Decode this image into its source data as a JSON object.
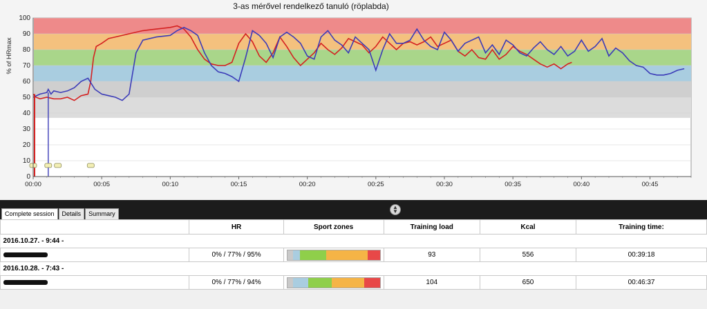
{
  "chart_data": {
    "type": "line",
    "title": "3-as mérővel rendelkező tanuló (röplabda)",
    "ylabel": "% of HRmax",
    "xlabel": "",
    "ylim": [
      0,
      100
    ],
    "y_ticks": [
      "0",
      "10",
      "20",
      "30",
      "40",
      "50",
      "60",
      "70",
      "80",
      "90",
      "100"
    ],
    "x_ticks": [
      "00:00",
      "00:05",
      "00:10",
      "00:15",
      "00:20",
      "00:25",
      "00:30",
      "00:35",
      "00:40",
      "00:45"
    ],
    "xlim_minutes": [
      0,
      48
    ],
    "grid": true,
    "zones": [
      {
        "from": 90,
        "to": 100,
        "color": "#ee8a8a"
      },
      {
        "from": 80,
        "to": 90,
        "color": "#f4c17e"
      },
      {
        "from": 70,
        "to": 80,
        "color": "#a9d68a"
      },
      {
        "from": 60,
        "to": 70,
        "color": "#a9cde0"
      },
      {
        "from": 50,
        "to": 60,
        "color": "#cfcfcf"
      },
      {
        "from": 37,
        "to": 50,
        "color": "#dcdcdc"
      }
    ],
    "series": [
      {
        "color": "#d42020",
        "x": [
          0,
          0.2,
          0.5,
          1,
          1.5,
          2,
          2.5,
          3,
          3.5,
          4,
          4.2,
          4.4,
          4.6,
          5,
          5.5,
          6,
          7,
          8,
          9,
          10,
          10.5,
          11,
          11.5,
          12,
          12.5,
          13,
          13.5,
          14,
          14.5,
          15,
          15.5,
          16,
          16.5,
          17,
          17.5,
          18,
          18.5,
          19,
          19.5,
          20,
          20.5,
          21,
          21.5,
          22,
          22.5,
          23,
          23.5,
          24,
          24.5,
          25,
          25.5,
          26,
          26.5,
          27,
          27.5,
          28,
          28.5,
          29,
          29.5,
          30,
          30.5,
          31,
          31.5,
          32,
          32.5,
          33,
          33.5,
          34,
          34.5,
          35,
          35.5,
          36,
          36.5,
          37,
          37.5,
          38,
          38.5,
          39,
          39.3
        ],
        "y": [
          52,
          50,
          49,
          50,
          49,
          49,
          50,
          48,
          51,
          52,
          60,
          75,
          82,
          84,
          87,
          88,
          90,
          92,
          93,
          94,
          95,
          93,
          88,
          80,
          74,
          71,
          70,
          70,
          72,
          84,
          90,
          85,
          76,
          72,
          78,
          88,
          82,
          75,
          70,
          74,
          78,
          84,
          80,
          77,
          81,
          87,
          85,
          83,
          78,
          82,
          88,
          84,
          80,
          84,
          85,
          83,
          85,
          88,
          82,
          84,
          86,
          79,
          76,
          80,
          75,
          74,
          80,
          74,
          77,
          82,
          79,
          77,
          74,
          71,
          69,
          71,
          68,
          71,
          72
        ]
      },
      {
        "color": "#3b3bb8",
        "x": [
          0,
          0.5,
          1,
          1.1,
          1.3,
          1.5,
          2,
          2.5,
          3,
          3.5,
          4,
          4.5,
          5,
          5.5,
          6,
          6.5,
          7,
          7.5,
          8,
          9,
          10,
          10.5,
          11,
          11.5,
          12,
          12.5,
          13,
          13.5,
          14,
          14.5,
          15,
          15.5,
          16,
          16.5,
          17,
          17.5,
          18,
          18.5,
          19,
          19.5,
          20,
          20.5,
          21,
          21.5,
          22,
          22.5,
          23,
          23.5,
          24,
          24.5,
          25,
          25.5,
          26,
          26.5,
          27,
          27.5,
          28,
          28.5,
          29,
          29.5,
          30,
          30.5,
          31,
          31.5,
          32,
          32.5,
          33,
          33.5,
          34,
          34.5,
          35,
          35.5,
          36,
          36.5,
          37,
          37.5,
          38,
          38.5,
          39,
          39.5,
          40,
          40.5,
          41,
          41.5,
          42,
          42.5,
          43,
          43.5,
          44,
          44.5,
          45,
          45.5,
          46,
          46.5,
          47,
          47.5
        ],
        "y": [
          50,
          52,
          53,
          55,
          52,
          54,
          53,
          54,
          56,
          60,
          62,
          55,
          52,
          51,
          50,
          48,
          52,
          78,
          86,
          88,
          89,
          92,
          94,
          92,
          89,
          78,
          70,
          66,
          65,
          63,
          60,
          75,
          92,
          89,
          84,
          75,
          88,
          91,
          88,
          84,
          76,
          74,
          88,
          92,
          86,
          83,
          78,
          88,
          84,
          80,
          67,
          80,
          90,
          84,
          84,
          86,
          93,
          86,
          82,
          80,
          91,
          86,
          79,
          84,
          86,
          88,
          78,
          83,
          77,
          86,
          83,
          78,
          76,
          81,
          85,
          80,
          77,
          82,
          76,
          79,
          86,
          79,
          82,
          87,
          76,
          81,
          78,
          73,
          70,
          69,
          65,
          64,
          64,
          65,
          67,
          68
        ]
      }
    ],
    "markers_minutes": [
      0,
      1.1,
      1.8,
      4.2
    ]
  },
  "tabs": [
    "Complete session",
    "Details",
    "Summary"
  ],
  "table": {
    "headers": [
      "",
      "HR",
      "Sport zones",
      "Training load",
      "Kcal",
      "Training time:"
    ],
    "sessions": [
      {
        "date": "2016.10.27. - 9:44 -",
        "hr": "0% / 77% / 95%",
        "zones": [
          {
            "color": "#c9c9c9",
            "frac": 0.06
          },
          {
            "color": "#a9cde0",
            "frac": 0.08
          },
          {
            "color": "#8fcf4a",
            "frac": 0.28
          },
          {
            "color": "#f5b446",
            "frac": 0.45
          },
          {
            "color": "#e84848",
            "frac": 0.13
          }
        ],
        "load": "93",
        "kcal": "556",
        "time": "00:39:18"
      },
      {
        "date": "2016.10.28. - 7:43 -",
        "hr": "0% / 77% / 94%",
        "zones": [
          {
            "color": "#c9c9c9",
            "frac": 0.06
          },
          {
            "color": "#a9cde0",
            "frac": 0.17
          },
          {
            "color": "#8fcf4a",
            "frac": 0.25
          },
          {
            "color": "#f5b446",
            "frac": 0.35
          },
          {
            "color": "#e84848",
            "frac": 0.17
          }
        ],
        "load": "104",
        "kcal": "650",
        "time": "00:46:37"
      }
    ]
  }
}
